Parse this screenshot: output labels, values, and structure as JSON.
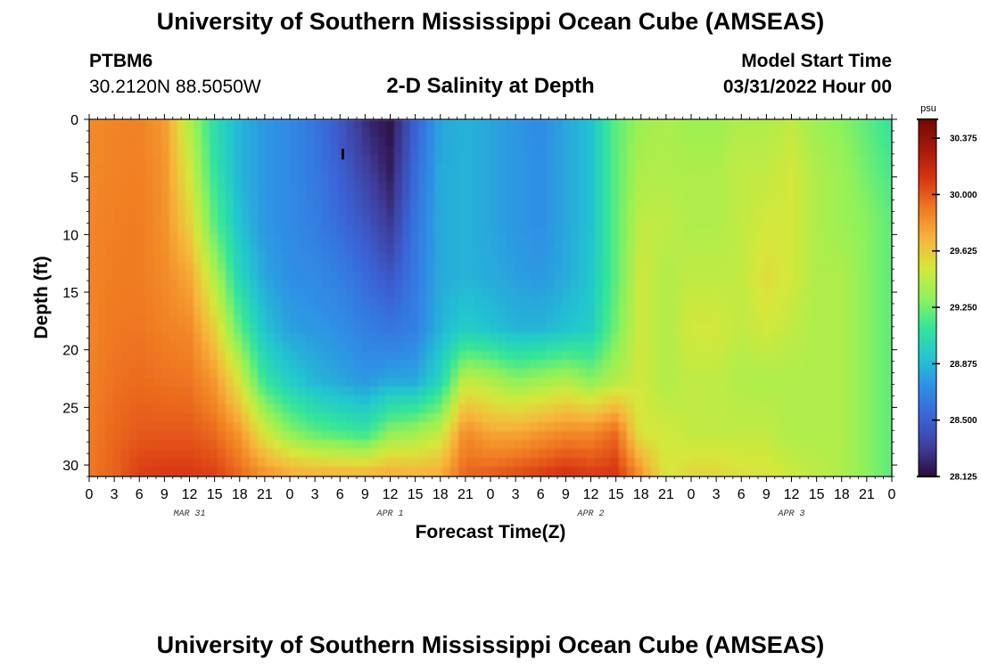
{
  "page": {
    "title_top": "University of Southern Mississippi Ocean Cube (AMSEAS)",
    "title_bottom": "University of Southern Mississippi Ocean Cube (AMSEAS)",
    "station": "PTBM6",
    "coords": "30.2120N  88.5050W",
    "subtitle": "2-D Salinity at Depth",
    "model_label": "Model Start Time",
    "model_time": "03/31/2022 Hour 00"
  },
  "colors": {
    "colormap": [
      "#2a0c3b",
      "#3f3e9c",
      "#3a64d8",
      "#2f8ee6",
      "#22c7cf",
      "#34e59a",
      "#8ff25a",
      "#d6e73a",
      "#f7b43a",
      "#f07a22",
      "#d83512",
      "#a6180a",
      "#6e0b04"
    ]
  },
  "chart_data": {
    "type": "heatmap",
    "title": "2-D Salinity at Depth",
    "xlabel": "Forecast Time(Z)",
    "ylabel": "Depth (ft)",
    "units": "psu",
    "x_tick_labels": [
      "0",
      "3",
      "6",
      "9",
      "12",
      "15",
      "18",
      "21",
      "0",
      "3",
      "6",
      "9",
      "12",
      "15",
      "18",
      "21",
      "0",
      "3",
      "6",
      "9",
      "12",
      "15",
      "18",
      "21",
      "0",
      "3",
      "6",
      "9",
      "12",
      "15",
      "18",
      "21",
      "0"
    ],
    "day_labels": [
      "MAR 31",
      "APR 1",
      "APR 2",
      "APR 3"
    ],
    "x_range_hours": [
      0,
      96
    ],
    "y_ticks": [
      0,
      5,
      10,
      15,
      20,
      25,
      30
    ],
    "y_range_ft": [
      0,
      31
    ],
    "colorbar_ticks": [
      "30.375",
      "30.000",
      "29.625",
      "29.250",
      "28.875",
      "28.500",
      "28.125"
    ],
    "colorbar_range": [
      28.125,
      30.5
    ],
    "values_psu": [
      [
        29.85,
        29.85,
        29.86,
        29.87,
        29.87,
        29.88,
        29.9,
        29.91
      ],
      [
        29.87,
        29.88,
        29.89,
        29.9,
        29.91,
        29.93,
        29.96,
        29.98
      ],
      [
        29.88,
        29.89,
        29.9,
        29.9,
        29.92,
        29.95,
        30.0,
        30.1
      ],
      [
        29.8,
        29.82,
        29.83,
        29.85,
        29.88,
        29.93,
        30.0,
        30.12
      ],
      [
        29.4,
        29.5,
        29.6,
        29.75,
        29.85,
        29.92,
        30.0,
        30.12
      ],
      [
        29.05,
        29.1,
        29.2,
        29.4,
        29.6,
        29.8,
        29.95,
        30.1
      ],
      [
        28.85,
        28.85,
        28.9,
        29.0,
        29.2,
        29.5,
        29.8,
        30.0
      ],
      [
        28.75,
        28.75,
        28.75,
        28.8,
        28.9,
        29.1,
        29.5,
        29.9
      ],
      [
        28.7,
        28.7,
        28.7,
        28.72,
        28.78,
        28.95,
        29.3,
        29.85
      ],
      [
        28.6,
        28.62,
        28.65,
        28.7,
        28.75,
        28.85,
        29.2,
        29.85
      ],
      [
        28.45,
        28.5,
        28.55,
        28.65,
        28.72,
        28.8,
        29.15,
        29.85
      ],
      [
        28.25,
        28.35,
        28.45,
        28.55,
        28.65,
        28.75,
        29.1,
        29.85
      ],
      [
        28.15,
        28.2,
        28.3,
        28.45,
        28.6,
        28.8,
        29.3,
        29.85
      ],
      [
        28.5,
        28.55,
        28.6,
        28.62,
        28.65,
        28.8,
        29.35,
        29.8
      ],
      [
        28.8,
        28.82,
        28.82,
        28.82,
        28.85,
        29.0,
        29.45,
        29.8
      ],
      [
        28.85,
        28.85,
        28.85,
        28.85,
        28.95,
        29.45,
        29.85,
        30.0
      ],
      [
        28.8,
        28.8,
        28.8,
        28.82,
        28.9,
        29.4,
        29.75,
        30.05
      ],
      [
        28.75,
        28.75,
        28.75,
        28.78,
        28.85,
        29.3,
        29.75,
        30.1
      ],
      [
        28.7,
        28.72,
        28.72,
        28.75,
        28.85,
        29.35,
        29.8,
        30.15
      ],
      [
        28.8,
        28.8,
        28.8,
        28.82,
        28.9,
        29.4,
        29.85,
        30.2
      ],
      [
        28.9,
        28.9,
        28.9,
        28.92,
        28.95,
        29.3,
        29.85,
        30.15
      ],
      [
        29.2,
        29.2,
        29.2,
        29.2,
        29.25,
        29.4,
        29.95,
        30.15
      ],
      [
        29.35,
        29.4,
        29.45,
        29.5,
        29.5,
        29.5,
        29.5,
        29.9
      ],
      [
        29.4,
        29.4,
        29.45,
        29.4,
        29.4,
        29.4,
        29.5,
        29.5
      ],
      [
        29.35,
        29.4,
        29.4,
        29.45,
        29.5,
        29.45,
        29.45,
        29.6
      ],
      [
        29.35,
        29.4,
        29.4,
        29.45,
        29.5,
        29.45,
        29.45,
        29.6
      ],
      [
        29.4,
        29.45,
        29.45,
        29.45,
        29.45,
        29.4,
        29.45,
        29.55
      ],
      [
        29.4,
        29.45,
        29.5,
        29.55,
        29.5,
        29.4,
        29.45,
        29.55
      ],
      [
        29.45,
        29.5,
        29.5,
        29.5,
        29.45,
        29.4,
        29.4,
        29.5
      ],
      [
        29.35,
        29.4,
        29.4,
        29.4,
        29.4,
        29.4,
        29.4,
        29.45
      ],
      [
        29.3,
        29.35,
        29.35,
        29.4,
        29.4,
        29.4,
        29.4,
        29.4
      ],
      [
        29.2,
        29.25,
        29.3,
        29.3,
        29.3,
        29.3,
        29.3,
        29.3
      ],
      [
        29.1,
        29.15,
        29.2,
        29.2,
        29.2,
        29.2,
        29.2,
        29.2
      ]
    ]
  }
}
